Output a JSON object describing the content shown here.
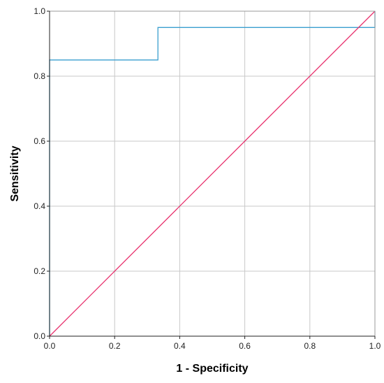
{
  "chart_data": {
    "type": "line",
    "title": "",
    "xlabel": "1 - Specificity",
    "ylabel": "Sensitivity",
    "xlim": [
      0.0,
      1.0
    ],
    "ylim": [
      0.0,
      1.0
    ],
    "x_ticks": [
      "0.0",
      "0.2",
      "0.4",
      "0.6",
      "0.8",
      "1.0"
    ],
    "y_ticks": [
      "0.0",
      "0.2",
      "0.4",
      "0.6",
      "0.8",
      "1.0"
    ],
    "grid": true,
    "legend": "none",
    "series": [
      {
        "style": "step",
        "color": "#3a9fcf",
        "x": [
          0.0,
          0.0,
          0.333,
          0.333,
          1.0,
          1.0
        ],
        "y": [
          0.0,
          0.85,
          0.85,
          0.95,
          0.95,
          1.0
        ]
      },
      {
        "style": "diagonal",
        "color": "#e8326e",
        "x": [
          0.0,
          1.0
        ],
        "y": [
          0.0,
          1.0
        ]
      }
    ],
    "colors": {
      "grid": "#c8c8c8",
      "axis": "#222222",
      "frame": "#999999"
    }
  }
}
